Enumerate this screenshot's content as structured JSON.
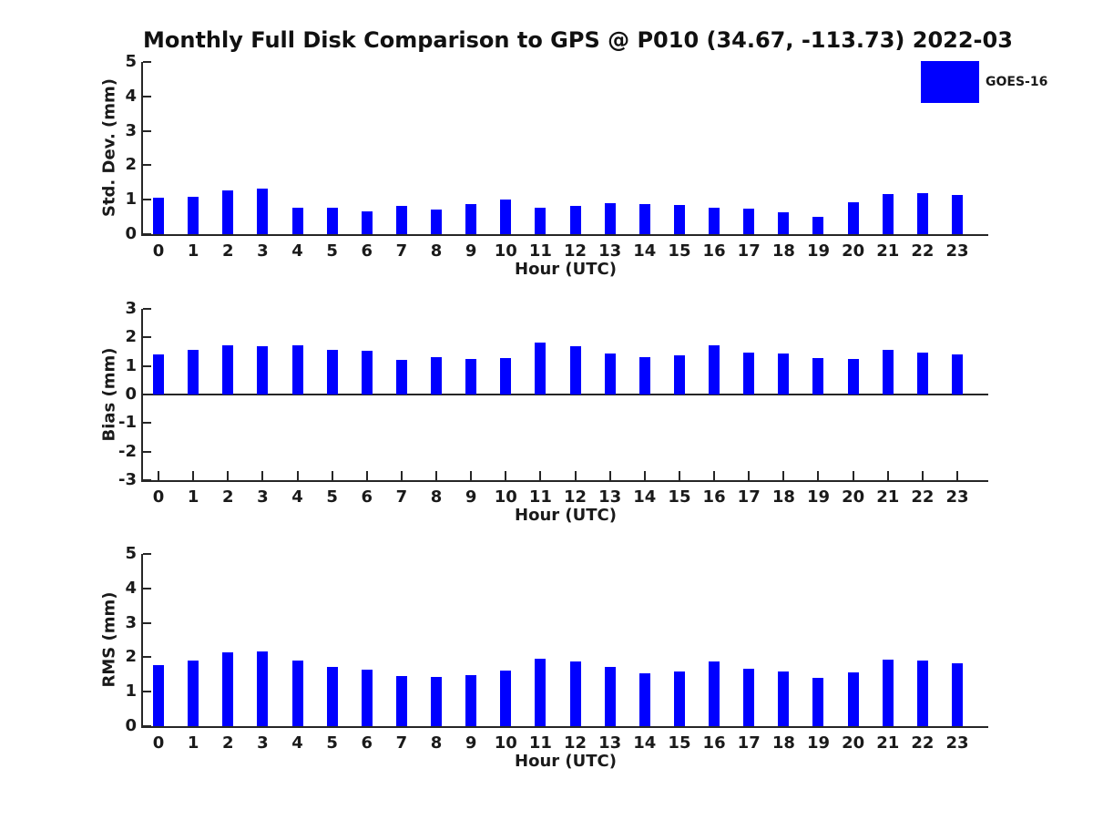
{
  "title": "Monthly Full Disk Comparison to GPS @ P010 (34.67, -113.73) 2022-03",
  "legend": {
    "label": "GOES-16",
    "color": "#0000ff",
    "position": "top-right"
  },
  "colors": {
    "bar": "#0000ff",
    "axis": "#262626",
    "text": "#1a1a1a"
  },
  "chart_data": [
    {
      "type": "bar",
      "ylabel": "Std. Dev. (mm)",
      "xlabel": "Hour (UTC)",
      "categories": [
        "0",
        "1",
        "2",
        "3",
        "4",
        "5",
        "6",
        "7",
        "8",
        "9",
        "10",
        "11",
        "12",
        "13",
        "14",
        "15",
        "16",
        "17",
        "18",
        "19",
        "20",
        "21",
        "22",
        "23"
      ],
      "series": [
        {
          "name": "GOES-16",
          "values": [
            1.07,
            1.08,
            1.27,
            1.33,
            0.76,
            0.77,
            0.67,
            0.81,
            0.71,
            0.86,
            1.0,
            0.78,
            0.81,
            0.9,
            0.87,
            0.84,
            0.77,
            0.75,
            0.64,
            0.5,
            0.93,
            1.16,
            1.19,
            1.14
          ]
        }
      ],
      "ylim": [
        0,
        5
      ],
      "yticks": [
        0,
        1,
        2,
        3,
        4,
        5
      ],
      "x_axis_ticks_visible": false,
      "grid": false
    },
    {
      "type": "bar",
      "ylabel": "Bias (mm)",
      "xlabel": "Hour (UTC)",
      "categories": [
        "0",
        "1",
        "2",
        "3",
        "4",
        "5",
        "6",
        "7",
        "8",
        "9",
        "10",
        "11",
        "12",
        "13",
        "14",
        "15",
        "16",
        "17",
        "18",
        "19",
        "20",
        "21",
        "22",
        "23"
      ],
      "series": [
        {
          "name": "GOES-16",
          "values": [
            1.42,
            1.57,
            1.72,
            1.7,
            1.72,
            1.57,
            1.52,
            1.22,
            1.3,
            1.23,
            1.28,
            1.82,
            1.68,
            1.44,
            1.3,
            1.37,
            1.72,
            1.48,
            1.44,
            1.29,
            1.26,
            1.57,
            1.48,
            1.41
          ]
        }
      ],
      "ylim": [
        -3,
        3
      ],
      "yticks": [
        -3,
        -2,
        -1,
        0,
        1,
        2,
        3
      ],
      "x_axis_ticks_visible": true,
      "grid": false
    },
    {
      "type": "bar",
      "ylabel": "RMS (mm)",
      "xlabel": "Hour (UTC)",
      "categories": [
        "0",
        "1",
        "2",
        "3",
        "4",
        "5",
        "6",
        "7",
        "8",
        "9",
        "10",
        "11",
        "12",
        "13",
        "14",
        "15",
        "16",
        "17",
        "18",
        "19",
        "20",
        "21",
        "22",
        "23"
      ],
      "series": [
        {
          "name": "GOES-16",
          "values": [
            1.77,
            1.9,
            2.14,
            2.16,
            1.9,
            1.73,
            1.65,
            1.46,
            1.44,
            1.49,
            1.62,
            1.97,
            1.87,
            1.71,
            1.54,
            1.6,
            1.88,
            1.66,
            1.58,
            1.39,
            1.55,
            1.92,
            1.9,
            1.82
          ]
        }
      ],
      "ylim": [
        0,
        5
      ],
      "yticks": [
        0,
        1,
        2,
        3,
        4,
        5
      ],
      "x_axis_ticks_visible": false,
      "grid": false
    }
  ]
}
